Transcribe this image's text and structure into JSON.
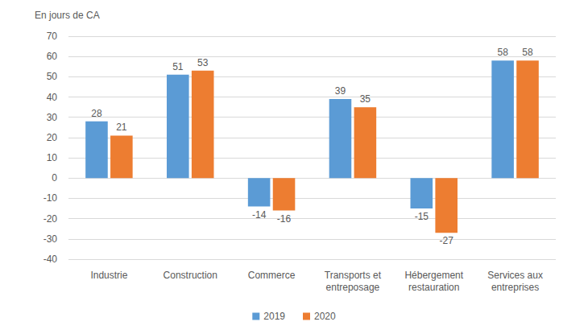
{
  "chart_data": {
    "type": "bar",
    "y_label": "En jours de CA",
    "categories": [
      "Industrie",
      "Construction",
      "Commerce",
      "Transports et\nentreposage",
      "Hébergement\nrestauration",
      "Services aux\nentreprises"
    ],
    "series": [
      {
        "name": "2019",
        "color": "#5B9BD5",
        "values": [
          28,
          51,
          -14,
          39,
          -15,
          58
        ]
      },
      {
        "name": "2020",
        "color": "#ED7D31",
        "values": [
          21,
          53,
          -16,
          35,
          -27,
          58
        ]
      }
    ],
    "ylim": [
      -40,
      70
    ],
    "yticks": [
      -40,
      -30,
      -20,
      -10,
      0,
      10,
      20,
      30,
      40,
      50,
      60,
      70
    ],
    "grid": true,
    "legend": "bottom",
    "data_labels": true
  }
}
